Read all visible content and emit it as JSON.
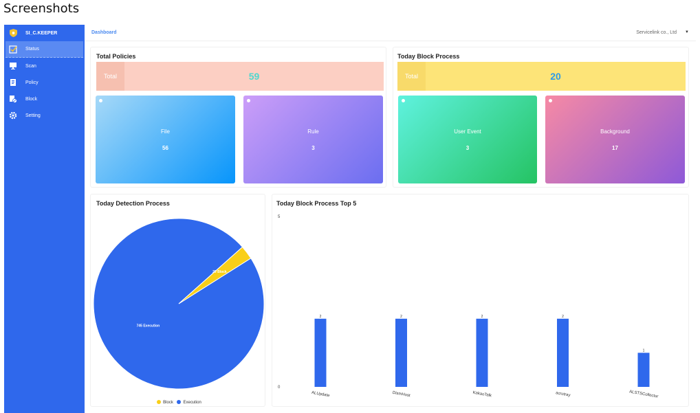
{
  "window": {
    "title": "Screenshots"
  },
  "sidebar": {
    "brand": "SI_C.KEEPER",
    "items": [
      {
        "label": "Status",
        "icon": "checkbox-icon"
      },
      {
        "label": "Scan",
        "icon": "monitor-icon"
      },
      {
        "label": "Policy",
        "icon": "policy-icon"
      },
      {
        "label": "Block",
        "icon": "block-icon"
      },
      {
        "label": "Setting",
        "icon": "gear-icon"
      }
    ]
  },
  "header": {
    "breadcrumb": "Dashboard",
    "company": "Servicelink co., Ltd"
  },
  "policies": {
    "title": "Total Policies",
    "total_label": "Total",
    "total_value": "59",
    "cards": [
      {
        "label": "File",
        "value": "56"
      },
      {
        "label": "Rule",
        "value": "3"
      }
    ]
  },
  "block_process": {
    "title": "Today Block Process",
    "total_label": "Total",
    "total_value": "20",
    "cards": [
      {
        "label": "User Event",
        "value": "3"
      },
      {
        "label": "Background",
        "value": "17"
      }
    ]
  },
  "colors": {
    "sidebar": "#2f68ec",
    "bar": "#2f68ec",
    "pie_execution": "#2f68ec",
    "pie_block": "#f9cf18"
  },
  "chart_data": [
    {
      "type": "pie",
      "title": "Today Detection Process",
      "slices": [
        {
          "name": "Execution",
          "value": 745,
          "label": "745 Execution",
          "color": "#2f68ec"
        },
        {
          "name": "Block",
          "value": 20,
          "label": "20 Block",
          "color": "#f9cf18"
        }
      ],
      "legend": [
        "Block",
        "Execution"
      ],
      "legend_position": "bottom"
    },
    {
      "type": "bar",
      "title": "Today Block Process Top 5",
      "categories": [
        "ALUpdate",
        "DismHost",
        "KakaoTalk",
        "acrotray",
        "ALSTSCollector"
      ],
      "values": [
        2,
        2,
        2,
        2,
        1
      ],
      "ylim": [
        0,
        5
      ],
      "yticks": [
        "5",
        "0"
      ],
      "grid": false
    }
  ]
}
